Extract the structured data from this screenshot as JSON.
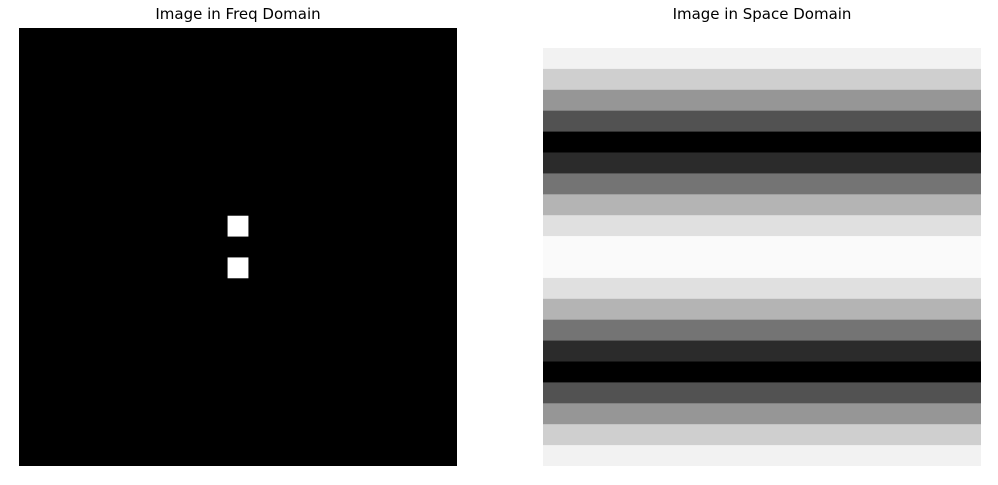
{
  "chart_data": [
    {
      "type": "heatmap",
      "title": "Image in Freq Domain",
      "colormap": "gray",
      "background": "#000000",
      "grid_size": 21,
      "bright_pixels": [
        {
          "row": 9,
          "col": 10,
          "value": 1
        },
        {
          "row": 11,
          "col": 10,
          "value": 1
        }
      ]
    },
    {
      "type": "heatmap",
      "title": "Image in Space Domain",
      "colormap": "gray",
      "direction": "horizontal-stripes",
      "row_gray_levels": [
        242,
        207,
        150,
        82,
        0,
        43,
        116,
        180,
        224,
        250,
        250,
        224,
        180,
        116,
        43,
        0,
        82,
        150,
        207,
        242
      ]
    }
  ]
}
